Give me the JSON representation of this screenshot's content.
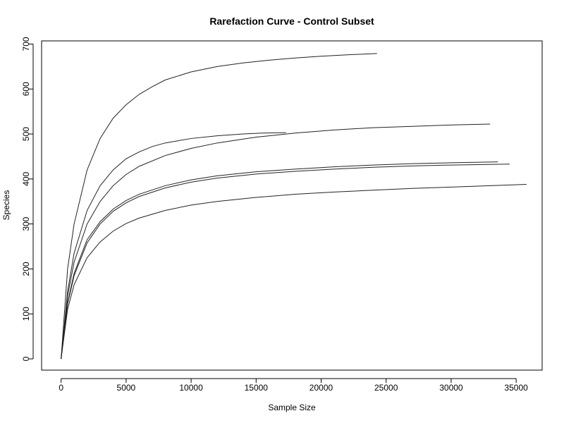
{
  "chart_data": {
    "type": "line",
    "title": "Rarefaction Curve - Control Subset",
    "xlabel": "Sample Size",
    "ylabel": "Species",
    "xlim": [
      -1500,
      37000
    ],
    "ylim": [
      -25,
      707
    ],
    "xticks": [
      0,
      5000,
      10000,
      15000,
      20000,
      25000,
      30000,
      35000
    ],
    "xtick_labels": [
      "0",
      "5000",
      "10000",
      "15000",
      "20000",
      "25000",
      "30000",
      "35000"
    ],
    "yticks": [
      0,
      100,
      200,
      300,
      400,
      500,
      600,
      700
    ],
    "ytick_labels": [
      "0",
      "100",
      "200",
      "300",
      "400",
      "500",
      "600",
      "700"
    ],
    "grid": false,
    "line_color": "#222222",
    "series": [
      {
        "points": [
          [
            0,
            0
          ],
          [
            500,
            200
          ],
          [
            1000,
            300
          ],
          [
            2000,
            420
          ],
          [
            3000,
            490
          ],
          [
            4000,
            535
          ],
          [
            5000,
            565
          ],
          [
            6000,
            588
          ],
          [
            7000,
            605
          ],
          [
            8000,
            620
          ],
          [
            10000,
            638
          ],
          [
            12000,
            650
          ],
          [
            14000,
            658
          ],
          [
            16000,
            664
          ],
          [
            18000,
            669
          ],
          [
            20000,
            673
          ],
          [
            22000,
            676
          ],
          [
            24300,
            679
          ]
        ]
      },
      {
        "points": [
          [
            0,
            0
          ],
          [
            500,
            150
          ],
          [
            1000,
            235
          ],
          [
            2000,
            330
          ],
          [
            3000,
            385
          ],
          [
            4000,
            420
          ],
          [
            5000,
            445
          ],
          [
            6000,
            460
          ],
          [
            7000,
            472
          ],
          [
            8000,
            480
          ],
          [
            10000,
            490
          ],
          [
            12000,
            496
          ],
          [
            14000,
            500
          ],
          [
            15500,
            502
          ],
          [
            17300,
            503
          ]
        ]
      },
      {
        "points": [
          [
            0,
            0
          ],
          [
            500,
            140
          ],
          [
            1000,
            215
          ],
          [
            2000,
            300
          ],
          [
            3000,
            350
          ],
          [
            4000,
            385
          ],
          [
            5000,
            410
          ],
          [
            6000,
            428
          ],
          [
            8000,
            452
          ],
          [
            10000,
            468
          ],
          [
            12000,
            480
          ],
          [
            15000,
            493
          ],
          [
            18000,
            502
          ],
          [
            21000,
            509
          ],
          [
            24000,
            514
          ],
          [
            27000,
            517
          ],
          [
            30000,
            520
          ],
          [
            33000,
            522
          ]
        ]
      },
      {
        "points": [
          [
            0,
            0
          ],
          [
            500,
            125
          ],
          [
            1000,
            190
          ],
          [
            2000,
            265
          ],
          [
            3000,
            305
          ],
          [
            4000,
            333
          ],
          [
            5000,
            352
          ],
          [
            6000,
            366
          ],
          [
            8000,
            385
          ],
          [
            10000,
            398
          ],
          [
            12000,
            407
          ],
          [
            15000,
            416
          ],
          [
            18000,
            422
          ],
          [
            21000,
            427
          ],
          [
            24000,
            431
          ],
          [
            27000,
            434
          ],
          [
            30000,
            436
          ],
          [
            33600,
            438
          ]
        ]
      },
      {
        "points": [
          [
            0,
            0
          ],
          [
            500,
            122
          ],
          [
            1000,
            185
          ],
          [
            2000,
            258
          ],
          [
            3000,
            300
          ],
          [
            4000,
            328
          ],
          [
            5000,
            347
          ],
          [
            6000,
            361
          ],
          [
            8000,
            380
          ],
          [
            10000,
            393
          ],
          [
            12000,
            402
          ],
          [
            15000,
            411
          ],
          [
            18000,
            417
          ],
          [
            21000,
            422
          ],
          [
            24000,
            426
          ],
          [
            27000,
            429
          ],
          [
            30000,
            431
          ],
          [
            34500,
            433
          ]
        ]
      },
      {
        "points": [
          [
            0,
            0
          ],
          [
            500,
            110
          ],
          [
            1000,
            165
          ],
          [
            2000,
            225
          ],
          [
            3000,
            260
          ],
          [
            4000,
            284
          ],
          [
            5000,
            301
          ],
          [
            6000,
            313
          ],
          [
            8000,
            330
          ],
          [
            10000,
            342
          ],
          [
            12000,
            350
          ],
          [
            15000,
            359
          ],
          [
            18000,
            366
          ],
          [
            21000,
            371
          ],
          [
            24000,
            375
          ],
          [
            27000,
            379
          ],
          [
            30000,
            382
          ],
          [
            33000,
            385
          ],
          [
            35800,
            388
          ]
        ]
      }
    ]
  }
}
